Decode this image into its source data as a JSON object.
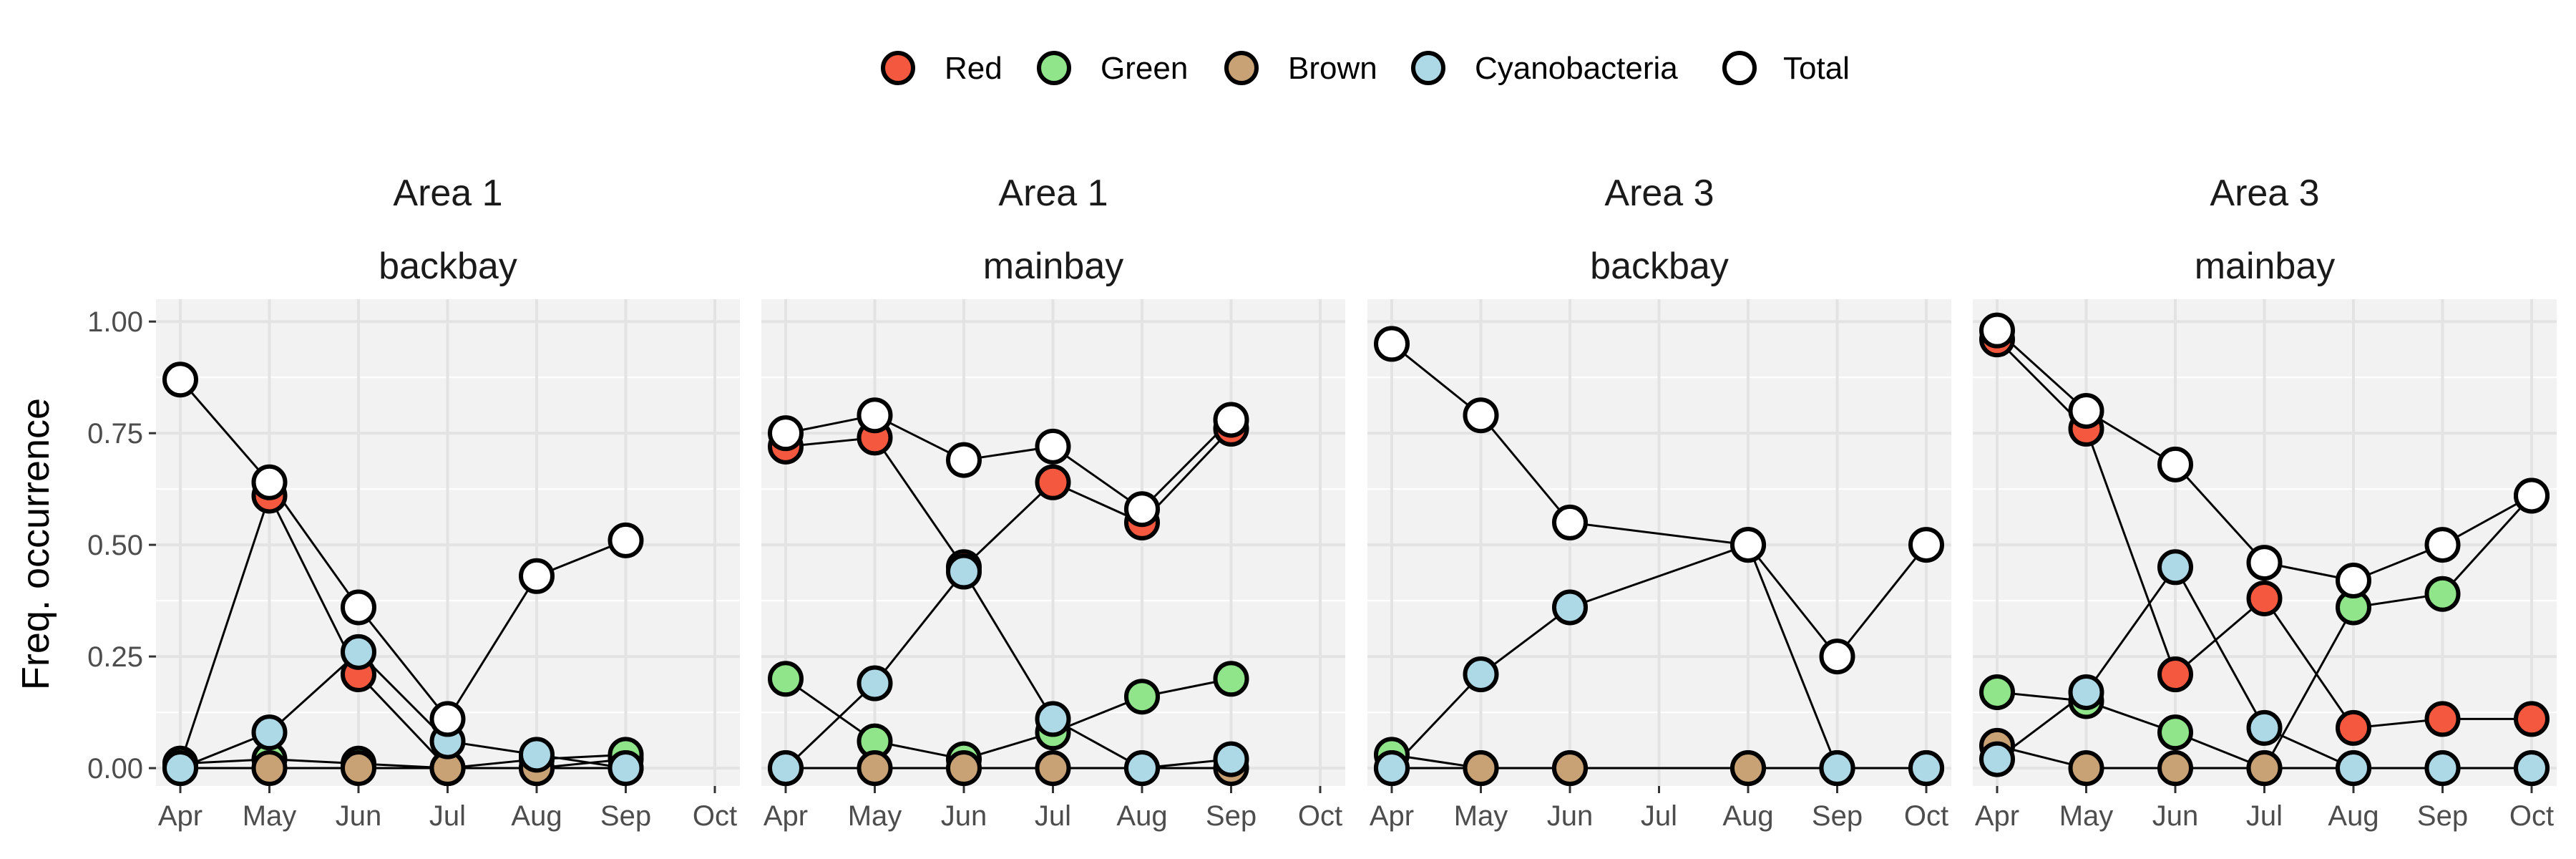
{
  "chart_data": {
    "type": "line",
    "ylabel": "Freq. occurrence",
    "xlabel": "",
    "x_categories": [
      "Apr",
      "May",
      "Jun",
      "Jul",
      "Aug",
      "Sep",
      "Oct"
    ],
    "y_ticks": [
      "0.00",
      "0.25",
      "0.50",
      "0.75",
      "1.00"
    ],
    "y_tick_values": [
      0,
      0.25,
      0.5,
      0.75,
      1.0
    ],
    "ylim": [
      -0.04,
      1.05
    ],
    "grid": true,
    "legend_position": "top",
    "legend": [
      {
        "name": "Red",
        "color": "#F4593F"
      },
      {
        "name": "Green",
        "color": "#90E58A"
      },
      {
        "name": "Brown",
        "color": "#C8A275"
      },
      {
        "name": "Cyanobacteria",
        "color": "#ADD8E6"
      },
      {
        "name": "Total",
        "color": "#FFFFFF"
      }
    ],
    "panels": [
      {
        "strip_top": "Area 1",
        "strip_bottom": "backbay",
        "series": [
          {
            "name": "Red",
            "x": [
              "Apr",
              "May",
              "Jun",
              "Jul",
              "Aug",
              "Sep"
            ],
            "y": [
              0.01,
              0.61,
              0.21,
              0.0,
              0.0,
              0.02
            ]
          },
          {
            "name": "Green",
            "x": [
              "Apr",
              "May",
              "Jun",
              "Jul",
              "Aug",
              "Sep"
            ],
            "y": [
              0.01,
              0.02,
              0.01,
              0.0,
              0.02,
              0.03
            ]
          },
          {
            "name": "Brown",
            "x": [
              "Apr",
              "May",
              "Jun",
              "Jul",
              "Aug",
              "Sep"
            ],
            "y": [
              0.0,
              0.0,
              0.0,
              0.0,
              0.0,
              0.0
            ]
          },
          {
            "name": "Cyanobacteria",
            "x": [
              "Apr",
              "May",
              "Jun",
              "Jul",
              "Aug",
              "Sep"
            ],
            "y": [
              0.0,
              0.08,
              0.26,
              0.06,
              0.03,
              0.0
            ]
          },
          {
            "name": "Total",
            "x": [
              "Apr",
              "May",
              "Jun",
              "Jul",
              "Aug",
              "Sep"
            ],
            "y": [
              0.87,
              0.64,
              0.36,
              0.11,
              0.43,
              0.51
            ]
          }
        ]
      },
      {
        "strip_top": "Area 1",
        "strip_bottom": "mainbay",
        "series": [
          {
            "name": "Red",
            "x": [
              "Apr",
              "May",
              "Jun",
              "Jul",
              "Aug",
              "Sep"
            ],
            "y": [
              0.72,
              0.74,
              0.45,
              0.64,
              0.55,
              0.76
            ]
          },
          {
            "name": "Green",
            "x": [
              "Apr",
              "May",
              "Jun",
              "Jul",
              "Aug",
              "Sep"
            ],
            "y": [
              0.2,
              0.06,
              0.02,
              0.08,
              0.16,
              0.2
            ]
          },
          {
            "name": "Brown",
            "x": [
              "Apr",
              "May",
              "Jun",
              "Jul",
              "Aug",
              "Sep"
            ],
            "y": [
              0.0,
              0.0,
              0.0,
              0.0,
              0.0,
              0.0
            ]
          },
          {
            "name": "Cyanobacteria",
            "x": [
              "Apr",
              "May",
              "Jun",
              "Jul",
              "Aug",
              "Sep"
            ],
            "y": [
              0.0,
              0.19,
              0.44,
              0.11,
              0.0,
              0.02
            ]
          },
          {
            "name": "Total",
            "x": [
              "Apr",
              "May",
              "Jun",
              "Jul",
              "Aug",
              "Sep"
            ],
            "y": [
              0.75,
              0.79,
              0.69,
              0.72,
              0.58,
              0.78
            ]
          }
        ]
      },
      {
        "strip_top": "Area 3",
        "strip_bottom": "backbay",
        "series": [
          {
            "name": "Green",
            "x": [
              "Apr",
              "May",
              "Jun",
              "Aug",
              "Sep",
              "Oct"
            ],
            "y": [
              0.03,
              0.0,
              0.0,
              0.0,
              0.0,
              0.0
            ]
          },
          {
            "name": "Brown",
            "x": [
              "Apr",
              "May",
              "Jun",
              "Aug",
              "Sep",
              "Oct"
            ],
            "y": [
              0.0,
              0.0,
              0.0,
              0.0,
              0.0,
              0.0
            ]
          },
          {
            "name": "Cyanobacteria",
            "x": [
              "Apr",
              "May",
              "Jun",
              "Aug",
              "Sep",
              "Oct"
            ],
            "y": [
              0.0,
              0.21,
              0.36,
              0.5,
              0.0,
              0.0
            ]
          },
          {
            "name": "Total",
            "x": [
              "Apr",
              "May",
              "Jun",
              "Aug",
              "Sep",
              "Oct"
            ],
            "y": [
              0.95,
              0.79,
              0.55,
              0.5,
              0.25,
              0.5
            ]
          }
        ]
      },
      {
        "strip_top": "Area 3",
        "strip_bottom": "mainbay",
        "series": [
          {
            "name": "Red",
            "x": [
              "Apr",
              "May",
              "Jun",
              "Jul",
              "Aug",
              "Sep",
              "Oct"
            ],
            "y": [
              0.96,
              0.76,
              0.21,
              0.38,
              0.09,
              0.11,
              0.11
            ]
          },
          {
            "name": "Green",
            "x": [
              "Apr",
              "May",
              "Jun",
              "Jul",
              "Aug",
              "Sep",
              "Oct"
            ],
            "y": [
              0.17,
              0.15,
              0.08,
              0.0,
              0.36,
              0.39,
              0.61
            ]
          },
          {
            "name": "Brown",
            "x": [
              "Apr",
              "May",
              "Jun",
              "Jul",
              "Aug",
              "Sep",
              "Oct"
            ],
            "y": [
              0.05,
              0.0,
              0.0,
              0.0,
              0.0,
              0.0,
              0.0
            ]
          },
          {
            "name": "Cyanobacteria",
            "x": [
              "Apr",
              "May",
              "Jun",
              "Jul",
              "Aug",
              "Sep",
              "Oct"
            ],
            "y": [
              0.02,
              0.17,
              0.45,
              0.09,
              0.0,
              0.0,
              0.0
            ]
          },
          {
            "name": "Total",
            "x": [
              "Apr",
              "May",
              "Jun",
              "Jul",
              "Aug",
              "Sep",
              "Oct"
            ],
            "y": [
              0.98,
              0.8,
              0.68,
              0.46,
              0.42,
              0.5,
              0.61
            ]
          }
        ]
      }
    ]
  }
}
